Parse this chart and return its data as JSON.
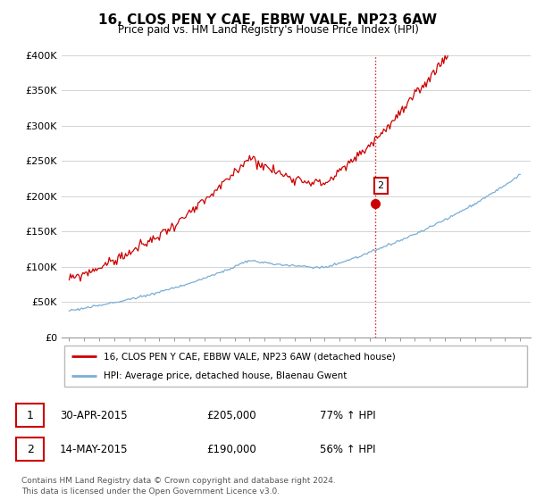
{
  "title": "16, CLOS PEN Y CAE, EBBW VALE, NP23 6AW",
  "subtitle": "Price paid vs. HM Land Registry's House Price Index (HPI)",
  "legend_line1": "16, CLOS PEN Y CAE, EBBW VALE, NP23 6AW (detached house)",
  "legend_line2": "HPI: Average price, detached house, Blaenau Gwent",
  "transaction1_date": "30-APR-2015",
  "transaction1_price": "£205,000",
  "transaction1_hpi": "77% ↑ HPI",
  "transaction2_date": "14-MAY-2015",
  "transaction2_price": "£190,000",
  "transaction2_hpi": "56% ↑ HPI",
  "footer": "Contains HM Land Registry data © Crown copyright and database right 2024.\nThis data is licensed under the Open Government Licence v3.0.",
  "red_color": "#cc0000",
  "blue_color": "#7aaed6",
  "ylim": [
    0,
    400000
  ],
  "yticks": [
    0,
    50000,
    100000,
    150000,
    200000,
    250000,
    300000,
    350000,
    400000
  ],
  "ytick_labels": [
    "£0",
    "£50K",
    "£100K",
    "£150K",
    "£200K",
    "£250K",
    "£300K",
    "£350K",
    "£400K"
  ],
  "t1_year": 2015.29,
  "t1_price": 205000,
  "t2_year": 2015.37,
  "t2_price": 190000
}
